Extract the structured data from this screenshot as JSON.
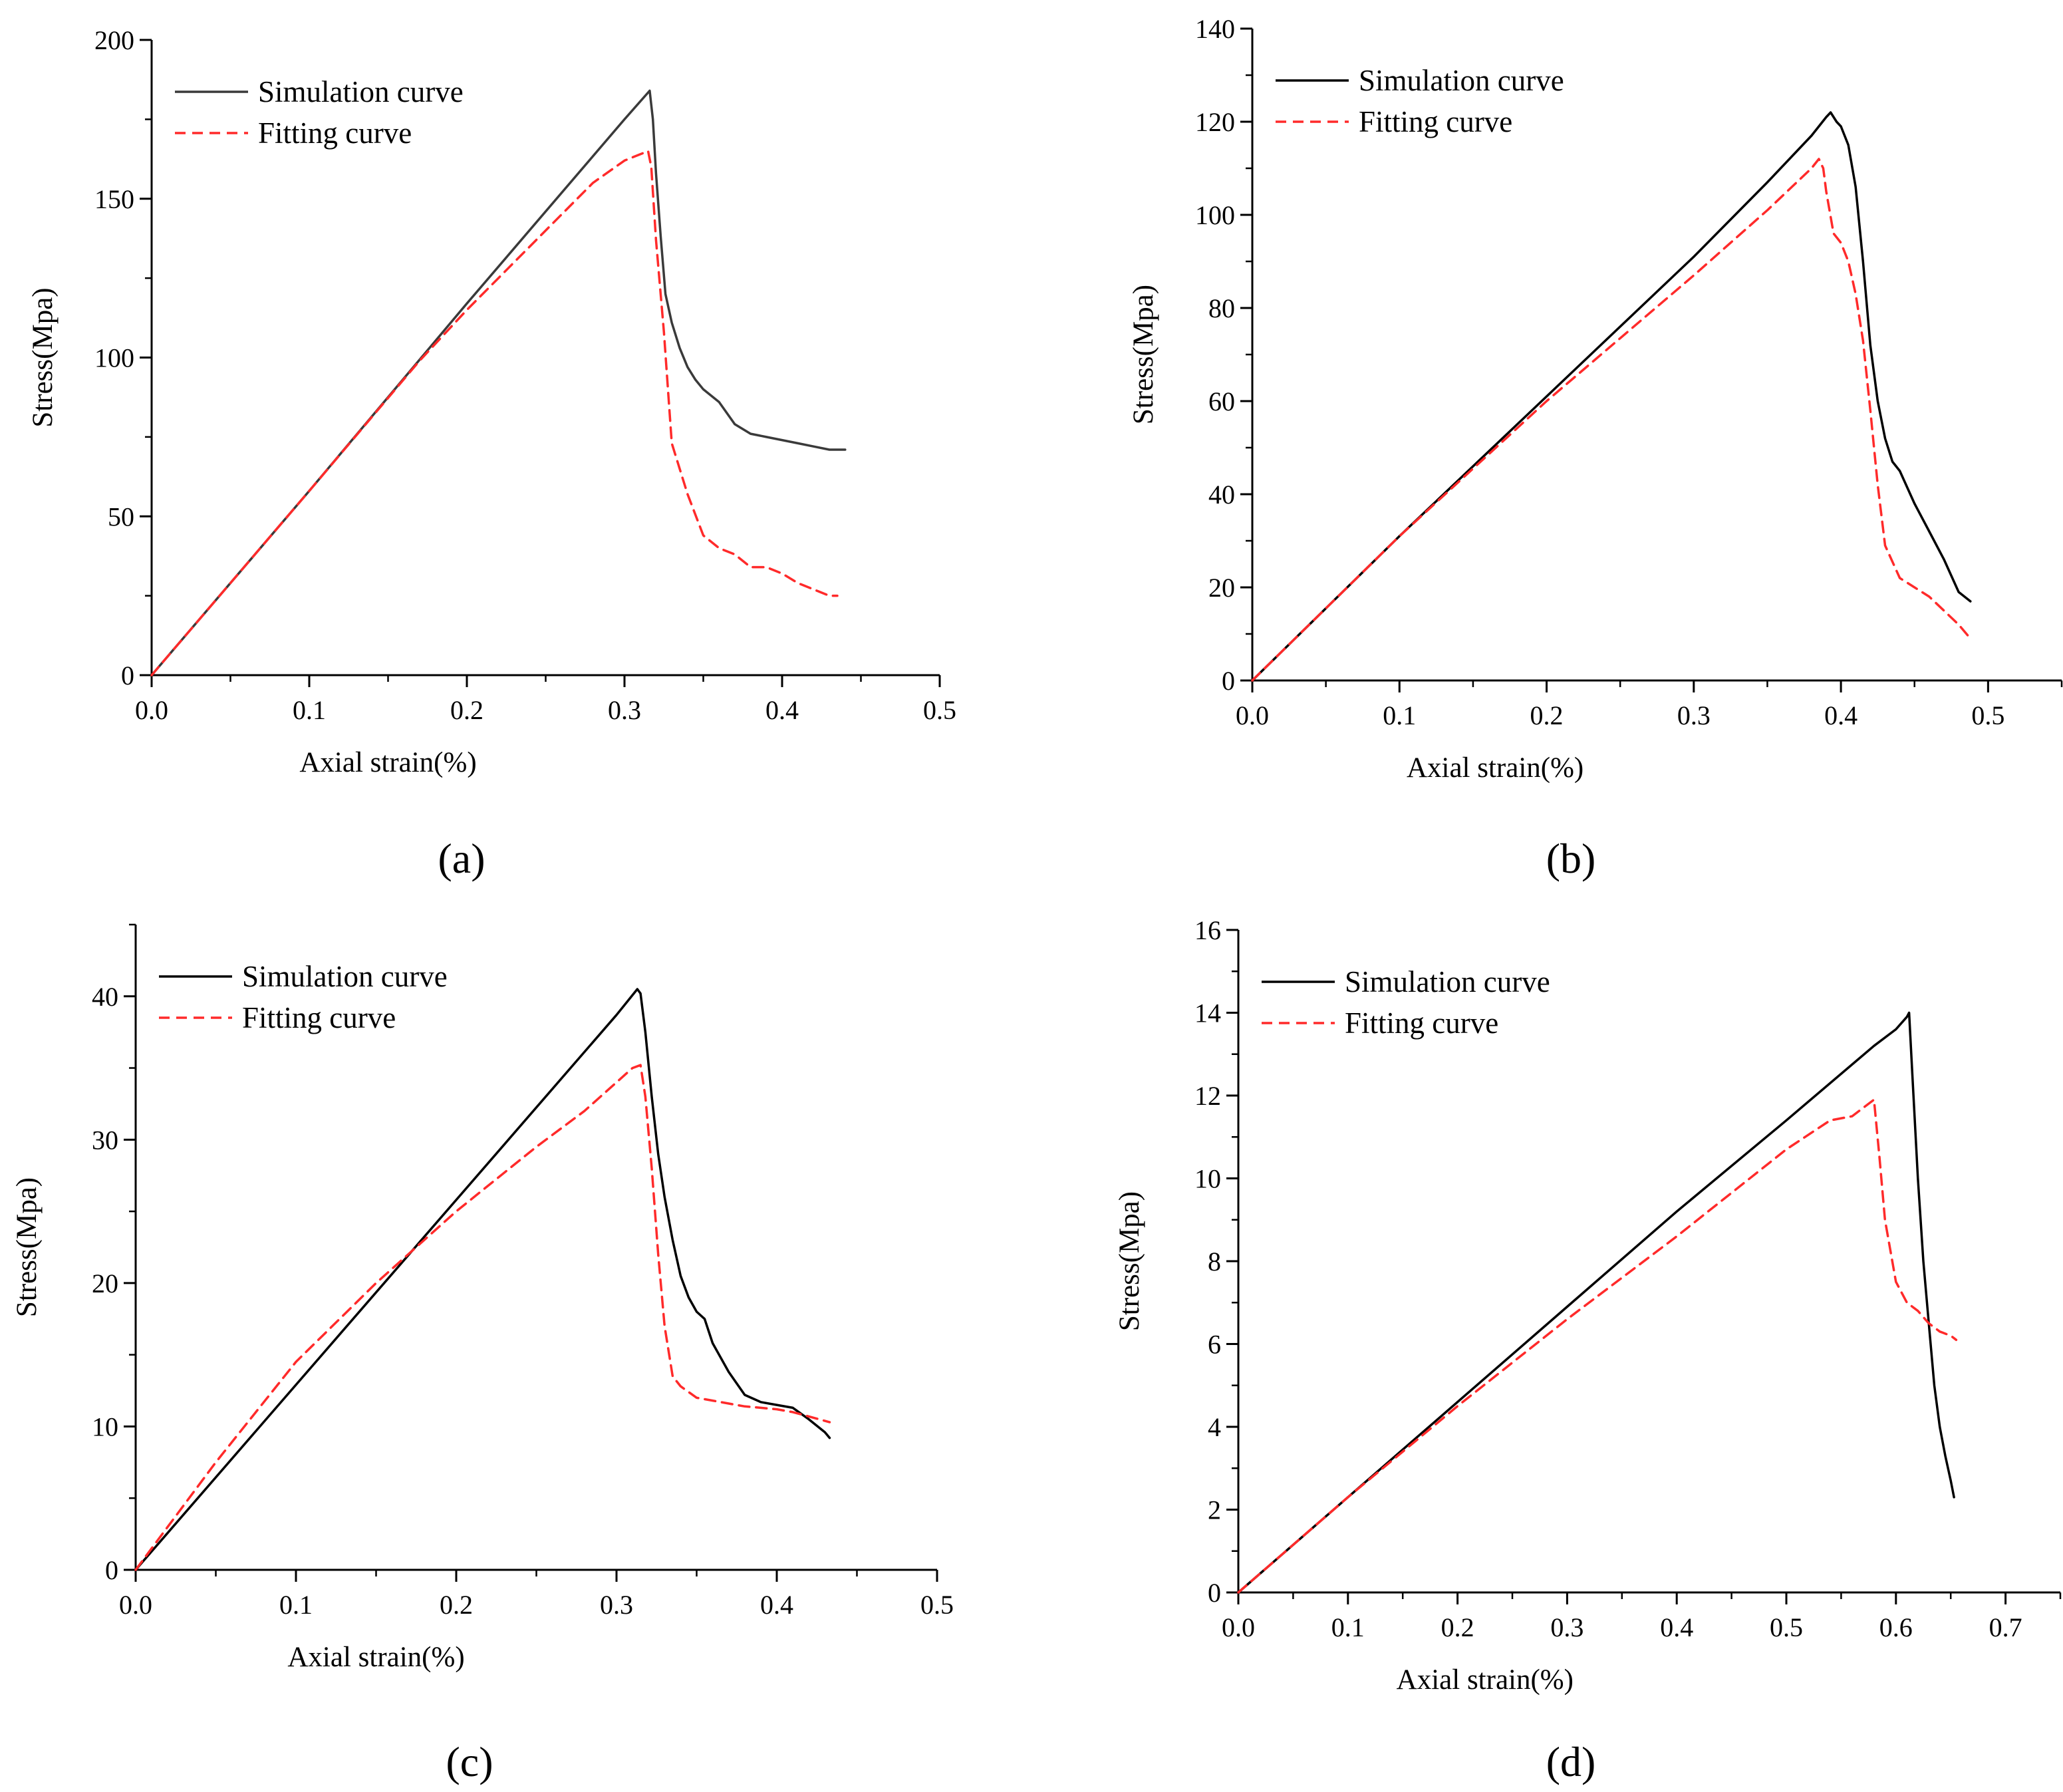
{
  "figure": {
    "colors": {
      "simulation": "#000000",
      "simulation_a": "#3a3a3a",
      "fitting": "#ff2a2a",
      "axis": "#000000"
    }
  },
  "chart_data": [
    {
      "panel": "a",
      "panel_label": "(a)",
      "type": "line",
      "xlabel": "Axial strain(%)",
      "ylabel": "Stress(Mpa)",
      "xlim": [
        0,
        0.5
      ],
      "ylim": [
        0,
        200
      ],
      "xticks": [
        "0.0",
        "0.1",
        "0.2",
        "0.3",
        "0.4",
        "0.5"
      ],
      "yticks": [
        "0",
        "50",
        "100",
        "150",
        "200"
      ],
      "grid": false,
      "legend_position": "top-left",
      "series": [
        {
          "name": "Simulation curve",
          "style": "solid",
          "x": [
            0,
            0.1,
            0.2,
            0.3,
            0.316,
            0.318,
            0.32,
            0.323,
            0.326,
            0.33,
            0.335,
            0.34,
            0.345,
            0.35,
            0.36,
            0.37,
            0.38,
            0.39,
            0.4,
            0.41,
            0.42,
            0.43,
            0.44
          ],
          "y": [
            0,
            58,
            117,
            175,
            184,
            175,
            158,
            138,
            120,
            111,
            103,
            97,
            93,
            90,
            86,
            79,
            76,
            75,
            74,
            73,
            72,
            71,
            71
          ]
        },
        {
          "name": "Fitting curve",
          "style": "dashed",
          "x": [
            0,
            0.1,
            0.17,
            0.2,
            0.25,
            0.28,
            0.3,
            0.31,
            0.315,
            0.317,
            0.32,
            0.325,
            0.33,
            0.34,
            0.35,
            0.36,
            0.37,
            0.38,
            0.39,
            0.4,
            0.41,
            0.42,
            0.43,
            0.435
          ],
          "y": [
            0,
            58,
            99,
            115,
            140,
            155,
            162,
            164,
            165,
            160,
            137,
            108,
            73,
            57,
            44,
            40,
            38,
            34,
            34,
            32,
            29,
            27,
            25,
            25
          ]
        }
      ]
    },
    {
      "panel": "b",
      "panel_label": "(b)",
      "type": "line",
      "xlabel": "Axial strain(%)",
      "ylabel": "Stress(Mpa)",
      "xlim": [
        0,
        0.55
      ],
      "ylim": [
        0,
        140
      ],
      "xticks": [
        "0.0",
        "0.1",
        "0.2",
        "0.3",
        "0.4",
        "0.5"
      ],
      "yticks": [
        "0",
        "20",
        "40",
        "60",
        "80",
        "100",
        "120",
        "140"
      ],
      "grid": false,
      "legend_position": "top-left",
      "series": [
        {
          "name": "Simulation curve",
          "style": "solid",
          "x": [
            0,
            0.1,
            0.2,
            0.3,
            0.35,
            0.38,
            0.39,
            0.393,
            0.397,
            0.4,
            0.405,
            0.41,
            0.415,
            0.42,
            0.425,
            0.43,
            0.435,
            0.44,
            0.45,
            0.46,
            0.47,
            0.48,
            0.488
          ],
          "y": [
            0,
            31,
            61,
            91,
            107,
            117,
            121,
            122,
            120,
            119,
            115,
            106,
            90,
            72,
            60,
            52,
            47,
            45,
            38,
            32,
            26,
            19,
            17
          ]
        },
        {
          "name": "Fitting curve",
          "style": "dashed",
          "x": [
            0,
            0.1,
            0.2,
            0.3,
            0.35,
            0.38,
            0.385,
            0.388,
            0.39,
            0.395,
            0.4,
            0.405,
            0.41,
            0.415,
            0.42,
            0.425,
            0.43,
            0.44,
            0.45,
            0.46,
            0.47,
            0.48,
            0.488
          ],
          "y": [
            0,
            31,
            60,
            87,
            101,
            110,
            112,
            110,
            105,
            96,
            94,
            90,
            83,
            73,
            58,
            42,
            29,
            22,
            20,
            18,
            15,
            12,
            9
          ]
        }
      ]
    },
    {
      "panel": "c",
      "panel_label": "(c)",
      "type": "line",
      "xlabel": "Axial strain(%)",
      "ylabel": "Stress(Mpa)",
      "xlim": [
        0,
        0.5
      ],
      "ylim": [
        0,
        45
      ],
      "xticks": [
        "0.0",
        "0.1",
        "0.2",
        "0.3",
        "0.4",
        "0.5"
      ],
      "yticks": [
        "0",
        "10",
        "20",
        "30",
        "40"
      ],
      "grid": false,
      "legend_position": "top-left",
      "series": [
        {
          "name": "Simulation curve",
          "style": "solid",
          "x": [
            0,
            0.1,
            0.2,
            0.3,
            0.313,
            0.315,
            0.318,
            0.322,
            0.326,
            0.33,
            0.335,
            0.34,
            0.345,
            0.35,
            0.355,
            0.36,
            0.37,
            0.38,
            0.39,
            0.4,
            0.41,
            0.42,
            0.43,
            0.433
          ],
          "y": [
            0,
            12.9,
            25.8,
            38.7,
            40.5,
            40.2,
            37.5,
            33,
            29,
            26,
            23,
            20.5,
            19,
            18,
            17.5,
            15.8,
            13.8,
            12.2,
            11.7,
            11.5,
            11.3,
            10.5,
            9.6,
            9.2
          ]
        },
        {
          "name": "Fitting curve",
          "style": "dashed",
          "x": [
            0,
            0.05,
            0.1,
            0.15,
            0.2,
            0.25,
            0.28,
            0.3,
            0.31,
            0.315,
            0.318,
            0.322,
            0.326,
            0.33,
            0.335,
            0.34,
            0.35,
            0.36,
            0.37,
            0.38,
            0.39,
            0.4,
            0.41,
            0.42,
            0.433
          ],
          "y": [
            0,
            7.5,
            14.5,
            20,
            25,
            29.5,
            32,
            34,
            35,
            35.2,
            33,
            28,
            22,
            17,
            13.5,
            12.8,
            12,
            11.8,
            11.6,
            11.4,
            11.3,
            11.2,
            11,
            10.7,
            10.3
          ]
        }
      ]
    },
    {
      "panel": "d",
      "panel_label": "(d)",
      "type": "line",
      "xlabel": "Axial strain(%)",
      "ylabel": "Stress(Mpa)",
      "xlim": [
        0,
        0.75
      ],
      "ylim": [
        0,
        16
      ],
      "xticks": [
        "0.0",
        "0.1",
        "0.2",
        "0.3",
        "0.4",
        "0.5",
        "0.6",
        "0.7"
      ],
      "yticks": [
        "0",
        "2",
        "4",
        "6",
        "8",
        "10",
        "12",
        "14",
        "16"
      ],
      "grid": false,
      "legend_position": "top-left",
      "series": [
        {
          "name": "Simulation curve",
          "style": "solid",
          "x": [
            0,
            0.1,
            0.2,
            0.3,
            0.4,
            0.5,
            0.58,
            0.6,
            0.61,
            0.612,
            0.615,
            0.62,
            0.625,
            0.63,
            0.635,
            0.64,
            0.645,
            0.65,
            0.653
          ],
          "y": [
            0,
            2.3,
            4.6,
            6.9,
            9.2,
            11.4,
            13.2,
            13.6,
            13.9,
            14,
            12.5,
            10,
            8,
            6.5,
            5,
            4,
            3.3,
            2.7,
            2.3
          ]
        },
        {
          "name": "Fitting curve",
          "style": "dashed",
          "x": [
            0,
            0.1,
            0.2,
            0.3,
            0.4,
            0.5,
            0.54,
            0.56,
            0.575,
            0.58,
            0.585,
            0.59,
            0.6,
            0.61,
            0.62,
            0.63,
            0.64,
            0.65,
            0.655
          ],
          "y": [
            0,
            2.3,
            4.5,
            6.6,
            8.6,
            10.7,
            11.4,
            11.5,
            11.8,
            11.9,
            10.5,
            9,
            7.5,
            7,
            6.8,
            6.5,
            6.3,
            6.2,
            6.1
          ]
        }
      ]
    }
  ]
}
